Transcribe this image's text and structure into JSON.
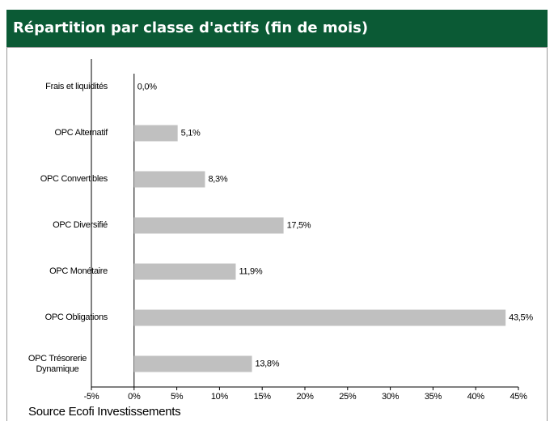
{
  "chart_data": {
    "type": "bar",
    "orientation": "horizontal",
    "title": "Répartition par classe d'actifs (fin de mois)",
    "categories": [
      "Frais et liquidités",
      "OPC Alternatif",
      "OPC Convertibles",
      "OPC Diversifié",
      "OPC Monétaire",
      "OPC Obligations",
      "OPC Trésorerie Dynamique"
    ],
    "values": [
      0.0,
      5.1,
      8.3,
      17.5,
      11.9,
      43.5,
      13.8
    ],
    "value_labels": [
      "0,0%",
      "5,1%",
      "8,3%",
      "17,5%",
      "11,9%",
      "43,5%",
      "13,8%"
    ],
    "color": "#c0c0c0",
    "header_color": "#0b5a35",
    "xlim": [
      -5,
      45
    ],
    "xticks": [
      {
        "value": -5,
        "label": "-5%"
      },
      {
        "value": 0,
        "label": "0%"
      },
      {
        "value": 5,
        "label": "5%"
      },
      {
        "value": 10,
        "label": "10%"
      },
      {
        "value": 15,
        "label": "15%"
      },
      {
        "value": 20,
        "label": "20%"
      },
      {
        "value": 25,
        "label": "25%"
      },
      {
        "value": 30,
        "label": "30%"
      },
      {
        "value": 35,
        "label": "35%"
      },
      {
        "value": 40,
        "label": "40%"
      },
      {
        "value": 45,
        "label": "45%"
      }
    ],
    "source": "Source Ecofi Investissements"
  }
}
